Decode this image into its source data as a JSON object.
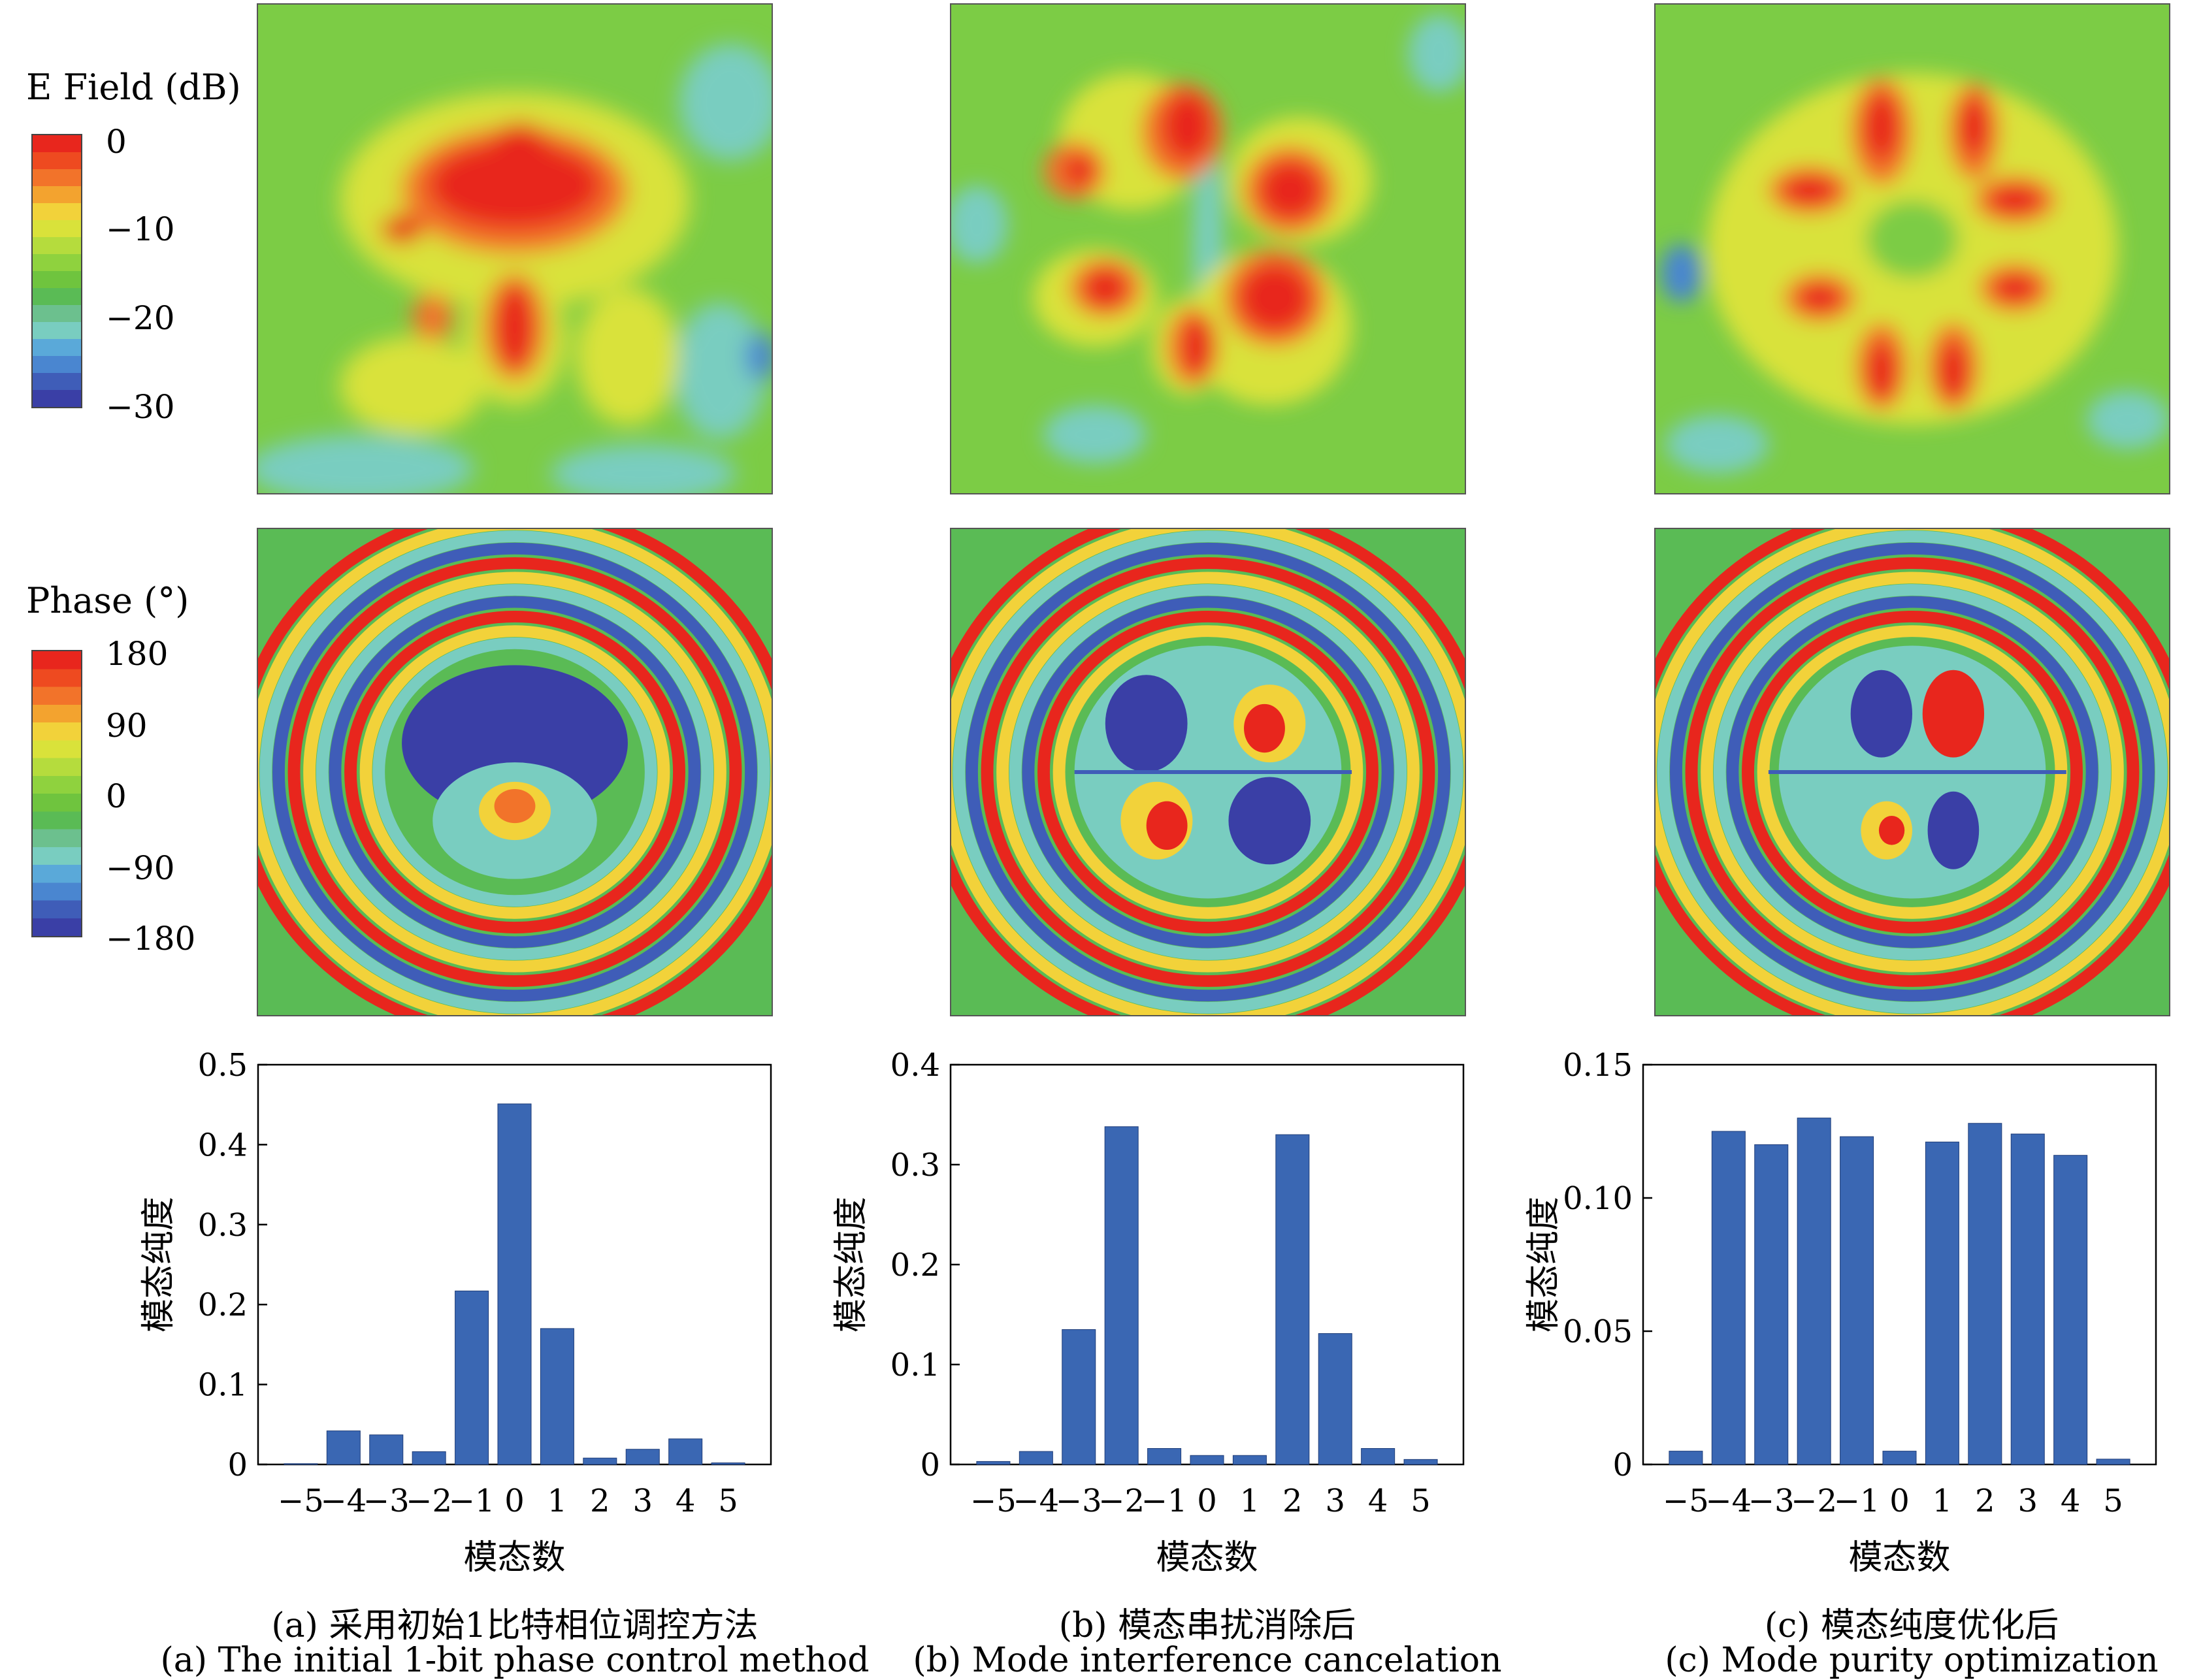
{
  "field_colorbar": {
    "title": "E Field (dB)",
    "ticks": [
      "0",
      "−10",
      "−20",
      "−30"
    ],
    "colors": [
      "#e8261d",
      "#ee4a20",
      "#f2732a",
      "#f3a32f",
      "#f2d23a",
      "#d9e23a",
      "#b5dc3d",
      "#8fd23e",
      "#6fc43e",
      "#5abb55",
      "#6cc08e",
      "#79cdc0",
      "#5aa9d9",
      "#4a86d0",
      "#3f5db8",
      "#3a3fa6"
    ]
  },
  "phase_colorbar": {
    "title": "Phase (°)",
    "ticks": [
      "180",
      "90",
      "0",
      "−90",
      "−180"
    ],
    "colors": [
      "#e8261d",
      "#ee4a20",
      "#f2732a",
      "#f3a32f",
      "#f2d23a",
      "#d9e23a",
      "#b5dc3d",
      "#8fd23e",
      "#6fc43e",
      "#5abb55",
      "#6cc08e",
      "#79cdc0",
      "#5aa9d9",
      "#4a86d0",
      "#3f5db8",
      "#3a3fa6"
    ]
  },
  "captions": [
    {
      "zh": "(a) 采用初始1比特相位调控方法",
      "en": "(a) The initial 1-bit phase control method"
    },
    {
      "zh": "(b) 模态串扰消除后",
      "en": "(b) Mode interference cancelation"
    },
    {
      "zh": "(c) 模态纯度优化后",
      "en": "(c) Mode purity optimization"
    }
  ],
  "chart_data": [
    {
      "type": "bar",
      "categories": [
        "-5",
        "-4",
        "-3",
        "-2",
        "-1",
        "0",
        "1",
        "2",
        "3",
        "4",
        "5"
      ],
      "values": [
        0.001,
        0.042,
        0.037,
        0.016,
        0.217,
        0.451,
        0.17,
        0.008,
        0.019,
        0.032,
        0.002
      ],
      "xlabel": "模态数",
      "ylabel": "模态纯度",
      "ylim": [
        0,
        0.5
      ],
      "yticks": [
        "0",
        "0.1",
        "0.2",
        "0.3",
        "0.4",
        "0.5"
      ],
      "ytick_values": [
        0,
        0.1,
        0.2,
        0.3,
        0.4,
        0.5
      ],
      "color": "#3a67b3"
    },
    {
      "type": "bar",
      "categories": [
        "-5",
        "-4",
        "-3",
        "-2",
        "-1",
        "0",
        "1",
        "2",
        "3",
        "4",
        "5"
      ],
      "values": [
        0.003,
        0.013,
        0.135,
        0.338,
        0.016,
        0.009,
        0.009,
        0.33,
        0.131,
        0.016,
        0.005
      ],
      "xlabel": "模态数",
      "ylabel": "模态纯度",
      "ylim": [
        0,
        0.4
      ],
      "yticks": [
        "0",
        "0.1",
        "0.2",
        "0.3",
        "0.4"
      ],
      "ytick_values": [
        0,
        0.1,
        0.2,
        0.3,
        0.4
      ],
      "color": "#3a67b3"
    },
    {
      "type": "bar",
      "categories": [
        "-5",
        "-4",
        "-3",
        "-2",
        "-1",
        "0",
        "1",
        "2",
        "3",
        "4",
        "5"
      ],
      "values": [
        0.005,
        0.125,
        0.12,
        0.13,
        0.123,
        0.005,
        0.121,
        0.128,
        0.124,
        0.116,
        0.002
      ],
      "xlabel": "模态数",
      "ylabel": "模态纯度",
      "ylim": [
        0,
        0.15
      ],
      "yticks": [
        "0",
        "0.05",
        "0.10",
        "0.15"
      ],
      "ytick_values": [
        0,
        0.05,
        0.1,
        0.15
      ],
      "color": "#3a67b3"
    }
  ]
}
